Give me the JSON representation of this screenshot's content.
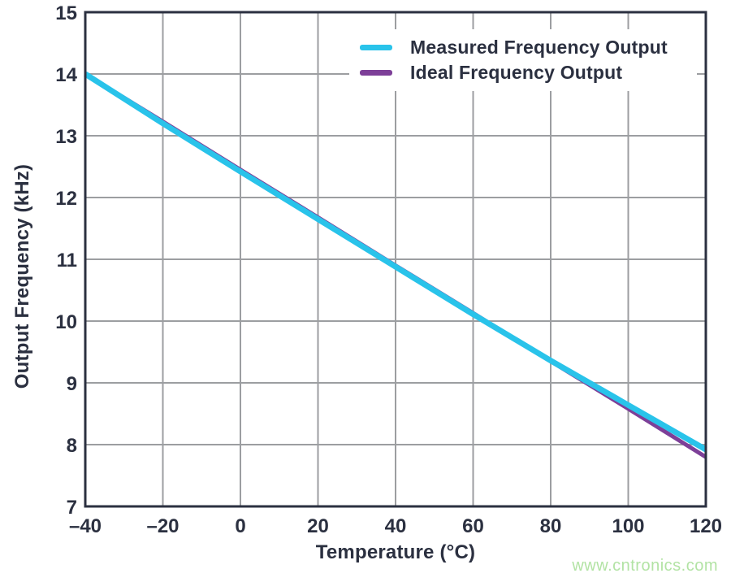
{
  "page": {
    "background": "#ffffff"
  },
  "watermark": {
    "text": "www.cntronics.com",
    "color": "#b2e3a4"
  },
  "chart_data": {
    "type": "line",
    "title": "",
    "xlabel": "Temperature (°C)",
    "ylabel": "Output Frequency (kHz)",
    "xlim": [
      -40,
      120
    ],
    "ylim": [
      7,
      15
    ],
    "grid": true,
    "legend_position": "top-right-inside",
    "x": [
      -40,
      -20,
      0,
      20,
      40,
      60,
      80,
      100,
      120
    ],
    "series": [
      {
        "name": "Measured Frequency Output",
        "color": "#29c3ea",
        "stroke_width": 7,
        "values": [
          14.0,
          13.2,
          12.42,
          11.65,
          10.88,
          10.11,
          9.36,
          8.64,
          7.92
        ]
      },
      {
        "name": "Ideal Frequency Output",
        "color": "#7d3f98",
        "stroke_width": 5,
        "values": [
          14.0,
          13.23,
          12.45,
          11.68,
          10.9,
          10.13,
          9.35,
          8.58,
          7.8
        ]
      }
    ],
    "xticks": {
      "values": [
        -40,
        -20,
        0,
        20,
        40,
        60,
        80,
        100,
        120
      ],
      "labels": [
        "–40",
        "–20",
        "0",
        "20",
        "40",
        "60",
        "80",
        "100",
        "120"
      ]
    },
    "yticks": {
      "values": [
        7,
        8,
        9,
        10,
        11,
        12,
        13,
        14,
        15
      ],
      "labels": [
        "7",
        "8",
        "9",
        "10",
        "11",
        "12",
        "13",
        "14",
        "15"
      ]
    },
    "axis_color": "#2b3040",
    "grid_color": "#9c9ea1",
    "tick_label_color": "#2b3040",
    "tick_font_size": 24
  }
}
